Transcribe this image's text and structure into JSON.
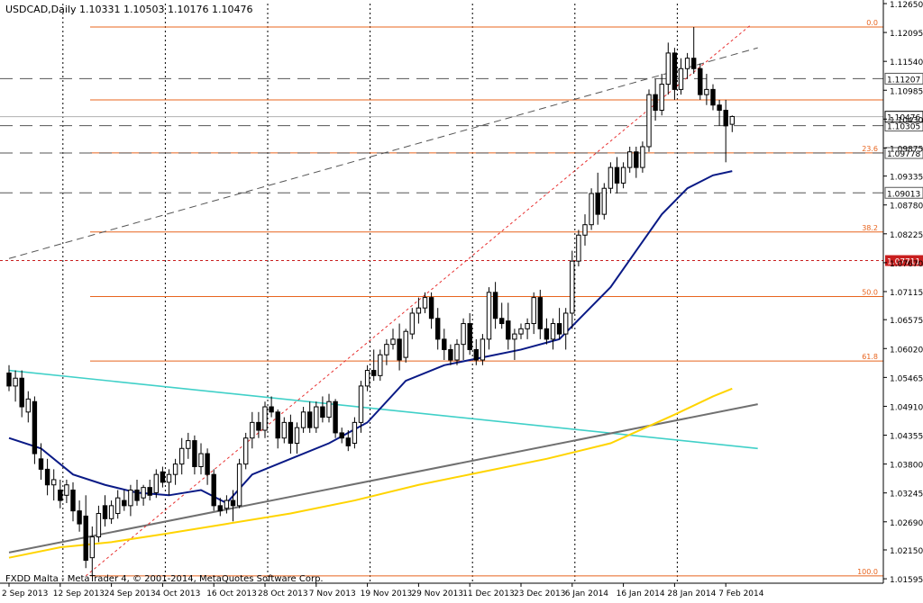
{
  "header": {
    "symbol": "USDCAD,Daily",
    "ohlc": "1.10331 1.10503 1.10176 1.10476"
  },
  "footer": {
    "copyright": "FXDD Malta - MetaTrader 4, © 2001-2014, MetaQuotes Software Corp."
  },
  "colors": {
    "bull_candle": "#ffffff",
    "bear_candle": "#000000",
    "ma_fast": "#0a1a86",
    "ma_slow": "#ffd400",
    "fib": "#e8641e",
    "fib_red_marker": "#c81e1e",
    "cyan_trend": "#40d0c8",
    "gray_trend": "#707070",
    "dashed_trend": "#555555",
    "red_dashed_trend": "#e83030",
    "price_box_bg": "#ffffff"
  },
  "chart_data": {
    "type": "candlestick",
    "symbol": "USDCAD",
    "timeframe": "Daily",
    "ylim": [
      1.0151,
      1.1265
    ],
    "y_ticks": [
      "1.12650",
      "1.12095",
      "1.11540",
      "1.10985",
      "1.10430",
      "1.09875",
      "1.09335",
      "1.08780",
      "1.08225",
      "1.07670",
      "1.07115",
      "1.06575",
      "1.06020",
      "1.05465",
      "1.04910",
      "1.04355",
      "1.03800",
      "1.03245",
      "1.02690",
      "1.02150",
      "1.01595"
    ],
    "x_ticks": [
      "2 Sep 2013",
      "12 Sep 2013",
      "24 Sep 2013",
      "4 Oct 2013",
      "16 Oct 2013",
      "28 Oct 2013",
      "7 Nov 2013",
      "19 Nov 2013",
      "29 Nov 2013",
      "11 Dec 2013",
      "23 Dec 2013",
      "6 Jan 2014",
      "16 Jan 2014",
      "28 Jan 2014",
      "7 Feb 2014"
    ],
    "x_tick_index": [
      0,
      8,
      16,
      24,
      32,
      40,
      48,
      56,
      64,
      72,
      80,
      88,
      96,
      104,
      112
    ],
    "candles": [
      [
        1.0555,
        1.057,
        1.052,
        1.053
      ],
      [
        1.053,
        1.056,
        1.05,
        1.0545
      ],
      [
        1.0545,
        1.056,
        1.047,
        1.049
      ],
      [
        1.048,
        1.052,
        1.046,
        1.0505
      ],
      [
        1.05,
        1.051,
        1.038,
        1.04
      ],
      [
        1.039,
        1.042,
        1.035,
        1.037
      ],
      [
        1.037,
        1.039,
        1.032,
        1.034
      ],
      [
        1.034,
        1.037,
        1.031,
        1.035
      ],
      [
        1.033,
        1.035,
        1.0295,
        1.031
      ],
      [
        1.032,
        1.035,
        1.0305,
        1.034
      ],
      [
        1.033,
        1.0345,
        1.027,
        1.029
      ],
      [
        1.029,
        1.031,
        1.025,
        1.0265
      ],
      [
        1.028,
        1.032,
        1.018,
        1.0195
      ],
      [
        1.02,
        1.026,
        1.0165,
        1.024
      ],
      [
        1.024,
        1.03,
        1.023,
        1.0285
      ],
      [
        1.03,
        1.032,
        1.026,
        1.0275
      ],
      [
        1.0275,
        1.031,
        1.0265,
        1.03
      ],
      [
        1.0285,
        1.033,
        1.0275,
        1.0315
      ],
      [
        1.031,
        1.033,
        1.029,
        1.03
      ],
      [
        1.03,
        1.034,
        1.028,
        1.033
      ],
      [
        1.033,
        1.035,
        1.03,
        1.031
      ],
      [
        1.0315,
        1.034,
        1.03,
        1.0335
      ],
      [
        1.0335,
        1.035,
        1.031,
        1.032
      ],
      [
        1.0325,
        1.037,
        1.0315,
        1.036
      ],
      [
        1.0365,
        1.0375,
        1.0335,
        1.0345
      ],
      [
        1.0345,
        1.037,
        1.032,
        1.036
      ],
      [
        1.036,
        1.039,
        1.034,
        1.038
      ],
      [
        1.038,
        1.043,
        1.036,
        1.041
      ],
      [
        1.041,
        1.044,
        1.039,
        1.0425
      ],
      [
        1.0425,
        1.0435,
        1.036,
        1.0375
      ],
      [
        1.0375,
        1.042,
        1.036,
        1.04
      ],
      [
        1.04,
        1.041,
        1.034,
        1.036
      ],
      [
        1.036,
        1.037,
        1.029,
        1.03
      ],
      [
        1.03,
        1.0315,
        1.028,
        1.029
      ],
      [
        1.0295,
        1.032,
        1.0285,
        1.031
      ],
      [
        1.031,
        1.033,
        1.027,
        1.03
      ],
      [
        1.03,
        1.039,
        1.0295,
        1.038
      ],
      [
        1.038,
        1.044,
        1.037,
        1.043
      ],
      [
        1.043,
        1.048,
        1.041,
        1.046
      ],
      [
        1.046,
        1.048,
        1.043,
        1.0445
      ],
      [
        1.0445,
        1.05,
        1.043,
        1.049
      ],
      [
        1.049,
        1.051,
        1.047,
        1.048
      ],
      [
        1.048,
        1.0485,
        1.041,
        1.043
      ],
      [
        1.043,
        1.047,
        1.042,
        1.046
      ],
      [
        1.046,
        1.0475,
        1.04,
        1.042
      ],
      [
        1.042,
        1.046,
        1.04,
        1.045
      ],
      [
        1.045,
        1.049,
        1.044,
        1.048
      ],
      [
        1.048,
        1.05,
        1.044,
        1.045
      ],
      [
        1.045,
        1.05,
        1.044,
        1.049
      ],
      [
        1.049,
        1.051,
        1.046,
        1.047
      ],
      [
        1.047,
        1.0515,
        1.046,
        1.05
      ],
      [
        1.05,
        1.0505,
        1.043,
        1.044
      ],
      [
        1.044,
        1.045,
        1.042,
        1.043
      ],
      [
        1.043,
        1.0445,
        1.0405,
        1.0415
      ],
      [
        1.042,
        1.047,
        1.041,
        1.046
      ],
      [
        1.046,
        1.054,
        1.044,
        1.053
      ],
      [
        1.053,
        1.057,
        1.052,
        1.056
      ],
      [
        1.056,
        1.06,
        1.054,
        1.055
      ],
      [
        1.055,
        1.06,
        1.054,
        1.059
      ],
      [
        1.059,
        1.062,
        1.057,
        1.061
      ],
      [
        1.061,
        1.064,
        1.06,
        1.062
      ],
      [
        1.062,
        1.065,
        1.056,
        1.058
      ],
      [
        1.0585,
        1.064,
        1.0575,
        1.0635
      ],
      [
        1.063,
        1.068,
        1.062,
        1.067
      ],
      [
        1.067,
        1.07,
        1.065,
        1.068
      ],
      [
        1.068,
        1.071,
        1.067,
        1.07
      ],
      [
        1.07,
        1.071,
        1.064,
        1.066
      ],
      [
        1.066,
        1.068,
        1.06,
        1.062
      ],
      [
        1.062,
        1.064,
        1.058,
        1.06
      ],
      [
        1.06,
        1.061,
        1.057,
        1.058
      ],
      [
        1.058,
        1.062,
        1.057,
        1.061
      ],
      [
        1.061,
        1.066,
        1.058,
        1.065
      ],
      [
        1.065,
        1.067,
        1.059,
        1.06
      ],
      [
        1.06,
        1.062,
        1.057,
        1.058
      ],
      [
        1.058,
        1.063,
        1.057,
        1.062
      ],
      [
        1.062,
        1.072,
        1.06,
        1.071
      ],
      [
        1.071,
        1.073,
        1.064,
        1.066
      ],
      [
        1.066,
        1.069,
        1.064,
        1.065
      ],
      [
        1.0655,
        1.069,
        1.06,
        1.062
      ],
      [
        1.062,
        1.064,
        1.058,
        1.063
      ],
      [
        1.063,
        1.065,
        1.062,
        1.064
      ],
      [
        1.064,
        1.066,
        1.062,
        1.065
      ],
      [
        1.065,
        1.071,
        1.063,
        1.07
      ],
      [
        1.07,
        1.0715,
        1.062,
        1.064
      ],
      [
        1.064,
        1.066,
        1.061,
        1.062
      ],
      [
        1.062,
        1.066,
        1.06,
        1.065
      ],
      [
        1.065,
        1.068,
        1.062,
        1.063
      ],
      [
        1.063,
        1.068,
        1.06,
        1.067
      ],
      [
        1.067,
        1.079,
        1.064,
        1.077
      ],
      [
        1.077,
        1.083,
        1.076,
        1.082
      ],
      [
        1.082,
        1.086,
        1.08,
        1.084
      ],
      [
        1.084,
        1.091,
        1.083,
        1.09
      ],
      [
        1.09,
        1.094,
        1.084,
        1.086
      ],
      [
        1.086,
        1.092,
        1.085,
        1.091
      ],
      [
        1.091,
        1.096,
        1.09,
        1.095
      ],
      [
        1.095,
        1.097,
        1.09,
        1.092
      ],
      [
        1.092,
        1.096,
        1.091,
        1.095
      ],
      [
        1.095,
        1.099,
        1.094,
        1.098
      ],
      [
        1.098,
        1.099,
        1.093,
        1.095
      ],
      [
        1.095,
        1.1,
        1.094,
        1.099
      ],
      [
        1.099,
        1.11,
        1.098,
        1.109
      ],
      [
        1.109,
        1.112,
        1.104,
        1.106
      ],
      [
        1.106,
        1.113,
        1.105,
        1.111
      ],
      [
        1.111,
        1.119,
        1.109,
        1.117
      ],
      [
        1.117,
        1.118,
        1.108,
        1.11
      ],
      [
        1.11,
        1.116,
        1.109,
        1.114
      ],
      [
        1.114,
        1.117,
        1.112,
        1.116
      ],
      [
        1.116,
        1.122,
        1.113,
        1.114
      ],
      [
        1.114,
        1.115,
        1.108,
        1.109
      ],
      [
        1.109,
        1.113,
        1.107,
        1.11
      ],
      [
        1.11,
        1.111,
        1.106,
        1.107
      ],
      [
        1.107,
        1.108,
        1.103,
        1.106
      ],
      [
        1.106,
        1.108,
        1.096,
        1.103
      ],
      [
        1.1033,
        1.105,
        1.1018,
        1.1048
      ]
    ],
    "ma_fast": [
      [
        0,
        1.043
      ],
      [
        5,
        1.041
      ],
      [
        10,
        1.036
      ],
      [
        15,
        1.034
      ],
      [
        20,
        1.0325
      ],
      [
        25,
        1.032
      ],
      [
        30,
        1.033
      ],
      [
        34,
        1.0305
      ],
      [
        38,
        1.036
      ],
      [
        44,
        1.039
      ],
      [
        50,
        1.042
      ],
      [
        56,
        1.046
      ],
      [
        62,
        1.054
      ],
      [
        68,
        1.057
      ],
      [
        74,
        1.0585
      ],
      [
        80,
        1.06
      ],
      [
        86,
        1.062
      ],
      [
        90,
        1.067
      ],
      [
        94,
        1.072
      ],
      [
        98,
        1.079
      ],
      [
        102,
        1.086
      ],
      [
        106,
        1.091
      ],
      [
        110,
        1.0935
      ],
      [
        113,
        1.0943
      ]
    ],
    "ma_slow": [
      [
        0,
        1.02
      ],
      [
        8,
        1.022
      ],
      [
        16,
        1.023
      ],
      [
        24,
        1.0245
      ],
      [
        34,
        1.0265
      ],
      [
        44,
        1.0285
      ],
      [
        54,
        1.031
      ],
      [
        64,
        1.034
      ],
      [
        74,
        1.0365
      ],
      [
        84,
        1.039
      ],
      [
        94,
        1.042
      ],
      [
        104,
        1.0475
      ],
      [
        110,
        1.051
      ],
      [
        113,
        1.0525
      ]
    ],
    "trendlines": [
      {
        "name": "cyan-trendline",
        "from": [
          0,
          1.056
        ],
        "to": [
          117,
          1.041
        ]
      },
      {
        "name": "gray-support-trendline",
        "from": [
          0,
          1.021
        ],
        "to": [
          117,
          1.0495
        ]
      },
      {
        "name": "dashed-channel-line",
        "from": [
          0,
          1.0775
        ],
        "to": [
          117,
          1.118
        ]
      },
      {
        "name": "red-dashed-fib-line",
        "from": [
          12,
          1.0165
        ],
        "to": [
          116,
          1.1225
        ]
      }
    ],
    "fib_levels": [
      {
        "label": "0.0",
        "value": 1.122
      },
      {
        "label": "",
        "value": 1.108
      },
      {
        "label": "23.6",
        "value": 1.0978
      },
      {
        "label": "38.2",
        "value": 1.0826
      },
      {
        "label": "50.0",
        "value": 1.0702
      },
      {
        "label": "61.8",
        "value": 1.0578
      },
      {
        "label": "100.0",
        "value": 1.0165
      }
    ],
    "horizontal_dashed_levels": [
      {
        "label": "1.11207",
        "value": 1.11207
      },
      {
        "label": "1.10305",
        "value": 1.10305
      },
      {
        "label": "1.09778",
        "value": 1.09778
      },
      {
        "label": "1.09013",
        "value": 1.09013
      }
    ],
    "red_level": {
      "label": "1.07711",
      "value": 1.07711
    },
    "current_price": {
      "label": "1.10476",
      "value": 1.10476
    }
  }
}
